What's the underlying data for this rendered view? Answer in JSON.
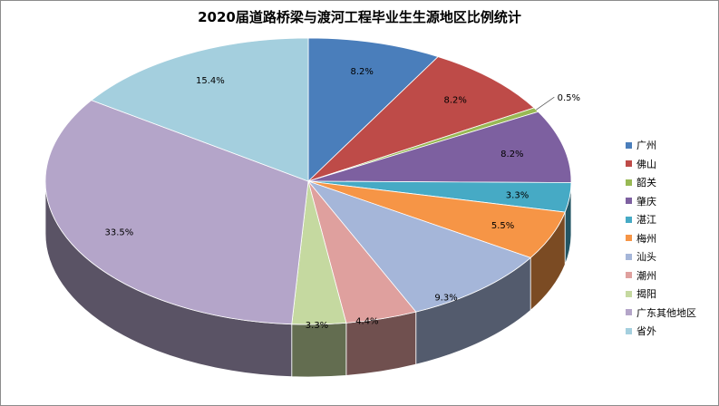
{
  "chart_data": {
    "type": "pie",
    "title": "2020届道路桥梁与渡河工程毕业生生源地区比例统计",
    "legend_position": "right",
    "categories": [
      "广州",
      "佛山",
      "韶关",
      "肇庆",
      "湛江",
      "梅州",
      "汕头",
      "潮州",
      "揭阳",
      "广东其他地区",
      "省外"
    ],
    "values": [
      8.2,
      8.2,
      0.5,
      8.2,
      3.3,
      5.5,
      9.3,
      4.4,
      3.3,
      33.5,
      15.4
    ],
    "data_labels": [
      "8.2%",
      "8.2%",
      "0.5%",
      "8.2%",
      "3.3%",
      "5.5%",
      "9.3%",
      "4.4%",
      "3.3%",
      "33.5%",
      "15.4%"
    ],
    "colors": [
      "#4a7ebb",
      "#be4b48",
      "#98b954",
      "#7d60a0",
      "#46aac5",
      "#f69546",
      "#a5b6d9",
      "#dfa09e",
      "#c5d9a0",
      "#b4a5c9",
      "#a4cfde"
    ]
  }
}
